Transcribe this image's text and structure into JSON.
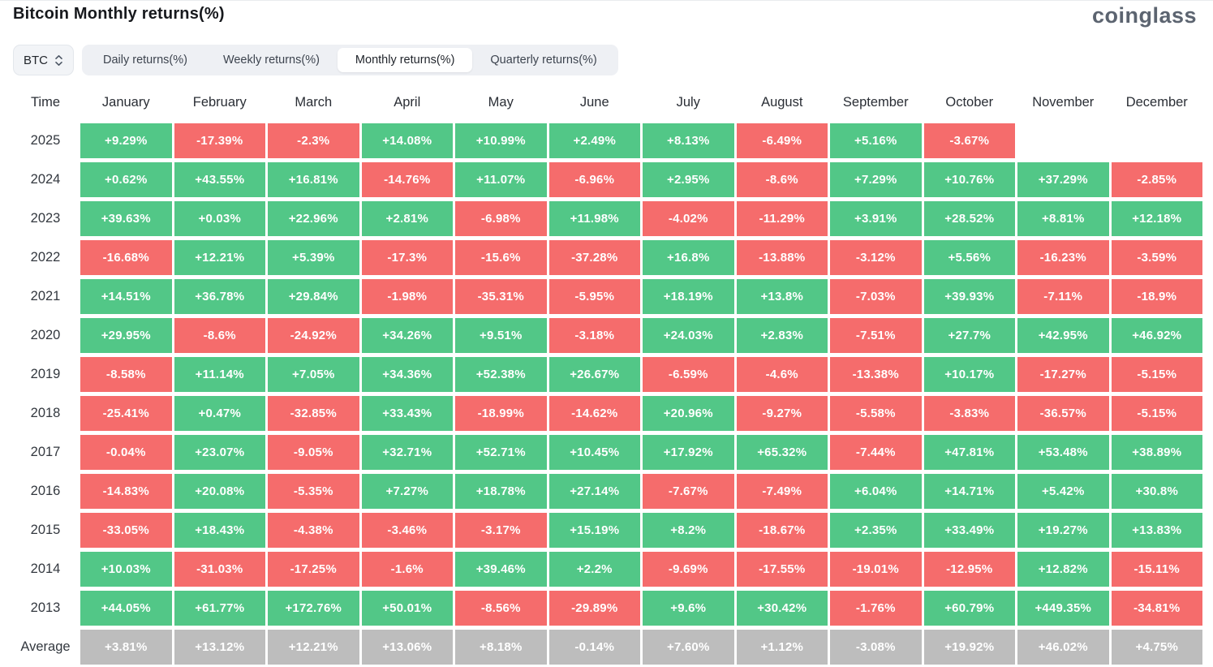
{
  "page": {
    "title": "Bitcoin Monthly returns(%)",
    "brand": "coinglass"
  },
  "controls": {
    "symbol_select": {
      "value": "BTC"
    },
    "tabs": [
      {
        "label": "Daily returns(%)",
        "active": false
      },
      {
        "label": "Weekly returns(%)",
        "active": false
      },
      {
        "label": "Monthly returns(%)",
        "active": true
      },
      {
        "label": "Quarterly returns(%)",
        "active": false
      }
    ]
  },
  "colors": {
    "positive": "#52c787",
    "negative": "#f56c6c",
    "average": "#bdbdbd",
    "cell_text": "#ffffff"
  },
  "table": {
    "time_header": "Time",
    "months": [
      "January",
      "February",
      "March",
      "April",
      "May",
      "June",
      "July",
      "August",
      "September",
      "October",
      "November",
      "December"
    ],
    "rows": [
      {
        "year": "2025",
        "values": [
          "+9.29%",
          "-17.39%",
          "-2.3%",
          "+14.08%",
          "+10.99%",
          "+2.49%",
          "+8.13%",
          "-6.49%",
          "+5.16%",
          "-3.67%",
          "",
          ""
        ]
      },
      {
        "year": "2024",
        "values": [
          "+0.62%",
          "+43.55%",
          "+16.81%",
          "-14.76%",
          "+11.07%",
          "-6.96%",
          "+2.95%",
          "-8.6%",
          "+7.29%",
          "+10.76%",
          "+37.29%",
          "-2.85%"
        ]
      },
      {
        "year": "2023",
        "values": [
          "+39.63%",
          "+0.03%",
          "+22.96%",
          "+2.81%",
          "-6.98%",
          "+11.98%",
          "-4.02%",
          "-11.29%",
          "+3.91%",
          "+28.52%",
          "+8.81%",
          "+12.18%"
        ]
      },
      {
        "year": "2022",
        "values": [
          "-16.68%",
          "+12.21%",
          "+5.39%",
          "-17.3%",
          "-15.6%",
          "-37.28%",
          "+16.8%",
          "-13.88%",
          "-3.12%",
          "+5.56%",
          "-16.23%",
          "-3.59%"
        ]
      },
      {
        "year": "2021",
        "values": [
          "+14.51%",
          "+36.78%",
          "+29.84%",
          "-1.98%",
          "-35.31%",
          "-5.95%",
          "+18.19%",
          "+13.8%",
          "-7.03%",
          "+39.93%",
          "-7.11%",
          "-18.9%"
        ]
      },
      {
        "year": "2020",
        "values": [
          "+29.95%",
          "-8.6%",
          "-24.92%",
          "+34.26%",
          "+9.51%",
          "-3.18%",
          "+24.03%",
          "+2.83%",
          "-7.51%",
          "+27.7%",
          "+42.95%",
          "+46.92%"
        ]
      },
      {
        "year": "2019",
        "values": [
          "-8.58%",
          "+11.14%",
          "+7.05%",
          "+34.36%",
          "+52.38%",
          "+26.67%",
          "-6.59%",
          "-4.6%",
          "-13.38%",
          "+10.17%",
          "-17.27%",
          "-5.15%"
        ]
      },
      {
        "year": "2018",
        "values": [
          "-25.41%",
          "+0.47%",
          "-32.85%",
          "+33.43%",
          "-18.99%",
          "-14.62%",
          "+20.96%",
          "-9.27%",
          "-5.58%",
          "-3.83%",
          "-36.57%",
          "-5.15%"
        ]
      },
      {
        "year": "2017",
        "values": [
          "-0.04%",
          "+23.07%",
          "-9.05%",
          "+32.71%",
          "+52.71%",
          "+10.45%",
          "+17.92%",
          "+65.32%",
          "-7.44%",
          "+47.81%",
          "+53.48%",
          "+38.89%"
        ]
      },
      {
        "year": "2016",
        "values": [
          "-14.83%",
          "+20.08%",
          "-5.35%",
          "+7.27%",
          "+18.78%",
          "+27.14%",
          "-7.67%",
          "-7.49%",
          "+6.04%",
          "+14.71%",
          "+5.42%",
          "+30.8%"
        ]
      },
      {
        "year": "2015",
        "values": [
          "-33.05%",
          "+18.43%",
          "-4.38%",
          "-3.46%",
          "-3.17%",
          "+15.19%",
          "+8.2%",
          "-18.67%",
          "+2.35%",
          "+33.49%",
          "+19.27%",
          "+13.83%"
        ]
      },
      {
        "year": "2014",
        "values": [
          "+10.03%",
          "-31.03%",
          "-17.25%",
          "-1.6%",
          "+39.46%",
          "+2.2%",
          "-9.69%",
          "-17.55%",
          "-19.01%",
          "-12.95%",
          "+12.82%",
          "-15.11%"
        ]
      },
      {
        "year": "2013",
        "values": [
          "+44.05%",
          "+61.77%",
          "+172.76%",
          "+50.01%",
          "-8.56%",
          "-29.89%",
          "+9.6%",
          "+30.42%",
          "-1.76%",
          "+60.79%",
          "+449.35%",
          "-34.81%"
        ]
      }
    ],
    "average_row": {
      "label": "Average",
      "values": [
        "+3.81%",
        "+13.12%",
        "+12.21%",
        "+13.06%",
        "+8.18%",
        "-0.14%",
        "+7.60%",
        "+1.12%",
        "-3.08%",
        "+19.92%",
        "+46.02%",
        "+4.75%"
      ]
    }
  },
  "chart_data": {
    "type": "heatmap",
    "title": "Bitcoin Monthly returns(%)",
    "unit": "%",
    "x_labels": [
      "January",
      "February",
      "March",
      "April",
      "May",
      "June",
      "July",
      "August",
      "September",
      "October",
      "November",
      "December"
    ],
    "y_labels": [
      "2025",
      "2024",
      "2023",
      "2022",
      "2021",
      "2020",
      "2019",
      "2018",
      "2017",
      "2016",
      "2015",
      "2014",
      "2013",
      "Average"
    ],
    "values": [
      [
        9.29,
        -17.39,
        -2.3,
        14.08,
        10.99,
        2.49,
        8.13,
        -6.49,
        5.16,
        -3.67,
        null,
        null
      ],
      [
        0.62,
        43.55,
        16.81,
        -14.76,
        11.07,
        -6.96,
        2.95,
        -8.6,
        7.29,
        10.76,
        37.29,
        -2.85
      ],
      [
        39.63,
        0.03,
        22.96,
        2.81,
        -6.98,
        11.98,
        -4.02,
        -11.29,
        3.91,
        28.52,
        8.81,
        12.18
      ],
      [
        -16.68,
        12.21,
        5.39,
        -17.3,
        -15.6,
        -37.28,
        16.8,
        -13.88,
        -3.12,
        5.56,
        -16.23,
        -3.59
      ],
      [
        14.51,
        36.78,
        29.84,
        -1.98,
        -35.31,
        -5.95,
        18.19,
        13.8,
        -7.03,
        39.93,
        -7.11,
        -18.9
      ],
      [
        29.95,
        -8.6,
        -24.92,
        34.26,
        9.51,
        -3.18,
        24.03,
        2.83,
        -7.51,
        27.7,
        42.95,
        46.92
      ],
      [
        -8.58,
        11.14,
        7.05,
        34.36,
        52.38,
        26.67,
        -6.59,
        -4.6,
        -13.38,
        10.17,
        -17.27,
        -5.15
      ],
      [
        -25.41,
        0.47,
        -32.85,
        33.43,
        -18.99,
        -14.62,
        20.96,
        -9.27,
        -5.58,
        -3.83,
        -36.57,
        -5.15
      ],
      [
        -0.04,
        23.07,
        -9.05,
        32.71,
        52.71,
        10.45,
        17.92,
        65.32,
        -7.44,
        47.81,
        53.48,
        38.89
      ],
      [
        -14.83,
        20.08,
        -5.35,
        7.27,
        18.78,
        27.14,
        -7.67,
        -7.49,
        6.04,
        14.71,
        5.42,
        30.8
      ],
      [
        -33.05,
        18.43,
        -4.38,
        -3.46,
        -3.17,
        15.19,
        8.2,
        -18.67,
        2.35,
        33.49,
        19.27,
        13.83
      ],
      [
        10.03,
        -31.03,
        -17.25,
        -1.6,
        39.46,
        2.2,
        -9.69,
        -17.55,
        -19.01,
        -12.95,
        12.82,
        -15.11
      ],
      [
        44.05,
        61.77,
        172.76,
        50.01,
        -8.56,
        -29.89,
        9.6,
        30.42,
        -1.76,
        60.79,
        449.35,
        -34.81
      ],
      [
        3.81,
        13.12,
        12.21,
        13.06,
        8.18,
        -0.14,
        7.6,
        1.12,
        -3.08,
        19.92,
        46.02,
        4.75
      ]
    ],
    "color_coding": "green positive, red negative, gray average row",
    "legend": "none",
    "grid": false
  }
}
